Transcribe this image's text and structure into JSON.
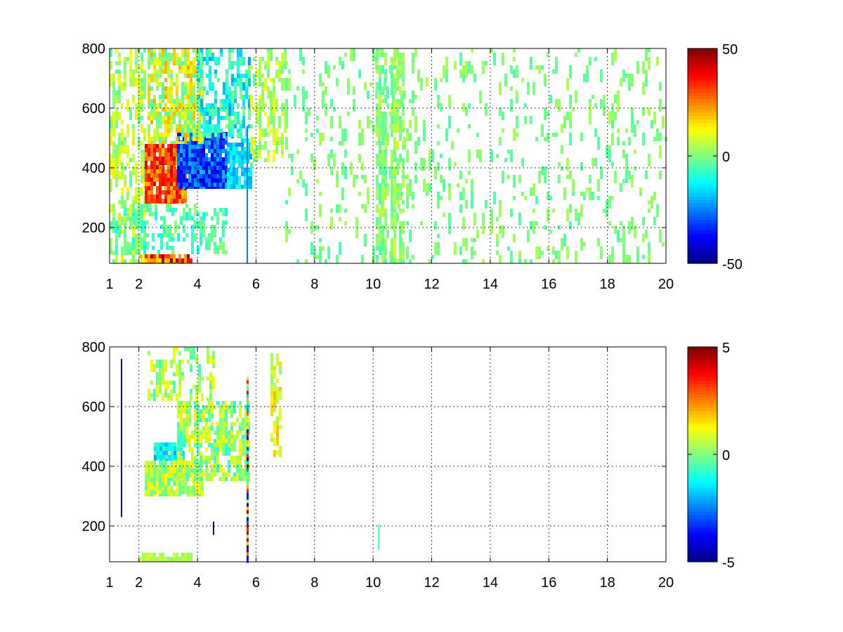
{
  "chart_data": [
    {
      "type": "heatmap",
      "xlim": [
        1,
        20
      ],
      "ylim": [
        80,
        800
      ],
      "xticks": [
        1,
        2,
        4,
        6,
        8,
        10,
        12,
        14,
        16,
        18,
        20
      ],
      "yticks": [
        200,
        400,
        600,
        800
      ],
      "grid": true,
      "colormap": "jet",
      "clim": [
        -50,
        50
      ],
      "colorbar_ticks": [
        -50,
        0,
        50
      ],
      "colorbar_placement": "right",
      "regions": [
        {
          "x_from": 1.0,
          "x_to": 2.2,
          "y_from": 80,
          "y_to": 800,
          "density": 0.35,
          "value": 5,
          "spread": 10
        },
        {
          "x_from": 2.2,
          "x_to": 3.6,
          "y_from": 280,
          "y_to": 480,
          "density": 0.85,
          "value": 30,
          "spread": 12
        },
        {
          "x_from": 3.3,
          "x_to": 5.0,
          "y_from": 330,
          "y_to": 520,
          "density": 0.85,
          "value": -30,
          "spread": 12
        },
        {
          "x_from": 2.3,
          "x_to": 4.2,
          "y_from": 480,
          "y_to": 800,
          "density": 0.55,
          "value": 8,
          "spread": 14
        },
        {
          "x_from": 4.0,
          "x_to": 5.8,
          "y_from": 500,
          "y_to": 800,
          "density": 0.4,
          "value": -10,
          "spread": 12
        },
        {
          "x_from": 5.0,
          "x_to": 5.8,
          "y_from": 330,
          "y_to": 500,
          "density": 0.7,
          "value": -15,
          "spread": 8
        },
        {
          "x_from": 2.0,
          "x_to": 3.8,
          "y_from": 80,
          "y_to": 110,
          "density": 0.9,
          "value": 30,
          "spread": 20
        },
        {
          "x_from": 1.0,
          "x_to": 5.0,
          "y_from": 110,
          "y_to": 280,
          "density": 0.25,
          "value": -5,
          "spread": 8
        },
        {
          "x_from": 5.8,
          "x_to": 7.0,
          "y_from": 400,
          "y_to": 800,
          "density": 0.3,
          "value": 5,
          "spread": 8
        },
        {
          "x_from": 7.0,
          "x_to": 20.0,
          "y_from": 80,
          "y_to": 800,
          "density": 0.09,
          "value": 0,
          "spread": 5
        },
        {
          "x_from": 10.1,
          "x_to": 10.4,
          "y_from": 80,
          "y_to": 800,
          "density": 0.5,
          "value": 0,
          "spread": 6
        },
        {
          "x_from": 10.6,
          "x_to": 11.0,
          "y_from": 80,
          "y_to": 800,
          "density": 0.5,
          "value": 2,
          "spread": 6
        }
      ],
      "lines": [
        {
          "x": 5.7,
          "y_from": 80,
          "y_to": 540,
          "value": -25
        }
      ]
    },
    {
      "type": "heatmap",
      "xlim": [
        1,
        20
      ],
      "ylim": [
        80,
        800
      ],
      "xticks": [
        1,
        2,
        4,
        6,
        8,
        10,
        12,
        14,
        16,
        18,
        20
      ],
      "yticks": [
        200,
        400,
        600,
        800
      ],
      "grid": true,
      "colormap": "jet",
      "clim": [
        -5,
        5
      ],
      "colorbar_ticks": [
        -5,
        0,
        5
      ],
      "colorbar_placement": "right",
      "regions": [
        {
          "x_from": 2.2,
          "x_to": 4.2,
          "y_from": 300,
          "y_to": 420,
          "density": 0.8,
          "value": 0.5,
          "spread": 1.0
        },
        {
          "x_from": 2.5,
          "x_to": 3.5,
          "y_from": 420,
          "y_to": 480,
          "density": 0.7,
          "value": -1.2,
          "spread": 1.0
        },
        {
          "x_from": 3.3,
          "x_to": 5.8,
          "y_from": 350,
          "y_to": 620,
          "density": 0.55,
          "value": 0.3,
          "spread": 1.2
        },
        {
          "x_from": 2.3,
          "x_to": 4.6,
          "y_from": 620,
          "y_to": 800,
          "density": 0.3,
          "value": 0.3,
          "spread": 1.0
        },
        {
          "x_from": 2.0,
          "x_to": 3.9,
          "y_from": 80,
          "y_to": 110,
          "density": 0.85,
          "value": 0.5,
          "spread": 0.4
        },
        {
          "x_from": 6.5,
          "x_to": 6.8,
          "y_from": 430,
          "y_to": 780,
          "density": 0.45,
          "value": 1.0,
          "spread": 1.0
        }
      ],
      "lines": [
        {
          "x": 1.4,
          "y_from": 230,
          "y_to": 760,
          "value": -4.5
        },
        {
          "x": 5.7,
          "y_from": 80,
          "y_to": 700,
          "value": 0.0,
          "colorful": true
        },
        {
          "x": 4.55,
          "y_from": 170,
          "y_to": 215,
          "value": -4.5
        },
        {
          "x": 10.2,
          "y_from": 120,
          "y_to": 205,
          "value": -0.5
        }
      ]
    }
  ]
}
